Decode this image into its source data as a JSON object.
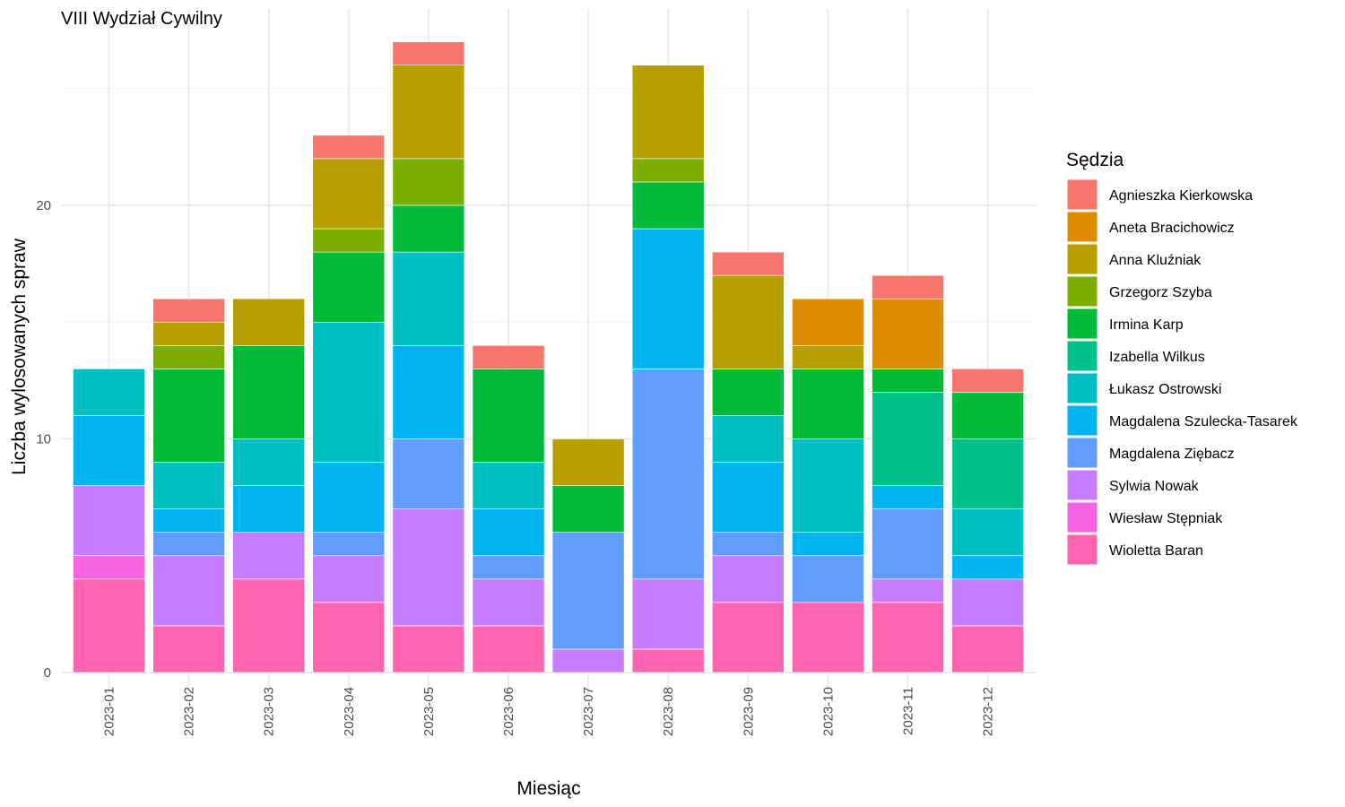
{
  "chart_data": {
    "type": "bar",
    "stacked": true,
    "title": "VIII Wydział Cywilny",
    "xlabel": "Miesiąc",
    "ylabel": "Liczba wylosowanych spraw",
    "ylim": [
      0,
      27
    ],
    "yticks": [
      0,
      10,
      20
    ],
    "grid": true,
    "legend": {
      "title": "Sędzia",
      "position": "right"
    },
    "categories": [
      "2023-01",
      "2023-02",
      "2023-03",
      "2023-04",
      "2023-05",
      "2023-06",
      "2023-07",
      "2023-08",
      "2023-09",
      "2023-10",
      "2023-11",
      "2023-12"
    ],
    "series": [
      {
        "name": "Agnieszka Kierkowska",
        "color": "#F8766D",
        "values": [
          0,
          1,
          0,
          1,
          1,
          1,
          0,
          0,
          1,
          0,
          1,
          1
        ]
      },
      {
        "name": "Aneta Bracichowicz",
        "color": "#DE8C00",
        "values": [
          0,
          0,
          0,
          0,
          0,
          0,
          0,
          0,
          0,
          2,
          3,
          0
        ]
      },
      {
        "name": "Anna Kluźniak",
        "color": "#B79F00",
        "values": [
          0,
          1,
          2,
          3,
          4,
          0,
          2,
          4,
          4,
          1,
          0,
          0
        ]
      },
      {
        "name": "Grzegorz Szyba",
        "color": "#7CAE00",
        "values": [
          0,
          1,
          0,
          1,
          2,
          0,
          0,
          1,
          0,
          0,
          0,
          0
        ]
      },
      {
        "name": "Irmina Karp",
        "color": "#00BA38",
        "values": [
          0,
          4,
          4,
          3,
          2,
          4,
          2,
          2,
          2,
          3,
          1,
          2
        ]
      },
      {
        "name": "Izabella Wilkus",
        "color": "#00C08B",
        "values": [
          0,
          0,
          0,
          0,
          0,
          0,
          0,
          0,
          0,
          0,
          4,
          3
        ]
      },
      {
        "name": "Łukasz Ostrowski",
        "color": "#00BFC4",
        "values": [
          2,
          2,
          2,
          6,
          4,
          2,
          0,
          0,
          2,
          4,
          0,
          2
        ]
      },
      {
        "name": "Magdalena Szulecka-Tasarek",
        "color": "#00B4F0",
        "values": [
          3,
          1,
          2,
          3,
          4,
          2,
          0,
          6,
          3,
          1,
          1,
          1
        ]
      },
      {
        "name": "Magdalena Ziębacz",
        "color": "#619CFF",
        "values": [
          0,
          1,
          0,
          1,
          3,
          1,
          5,
          9,
          1,
          2,
          3,
          0
        ]
      },
      {
        "name": "Sylwia Nowak",
        "color": "#C77CFF",
        "values": [
          3,
          3,
          2,
          2,
          5,
          2,
          1,
          3,
          2,
          0,
          1,
          2
        ]
      },
      {
        "name": "Wiesław Stępniak",
        "color": "#F564E3",
        "values": [
          1,
          0,
          0,
          0,
          0,
          0,
          0,
          0,
          0,
          0,
          0,
          0
        ]
      },
      {
        "name": "Wioletta Baran",
        "color": "#FF64B0",
        "values": [
          4,
          2,
          4,
          3,
          2,
          2,
          0,
          1,
          3,
          3,
          3,
          2
        ]
      }
    ]
  }
}
